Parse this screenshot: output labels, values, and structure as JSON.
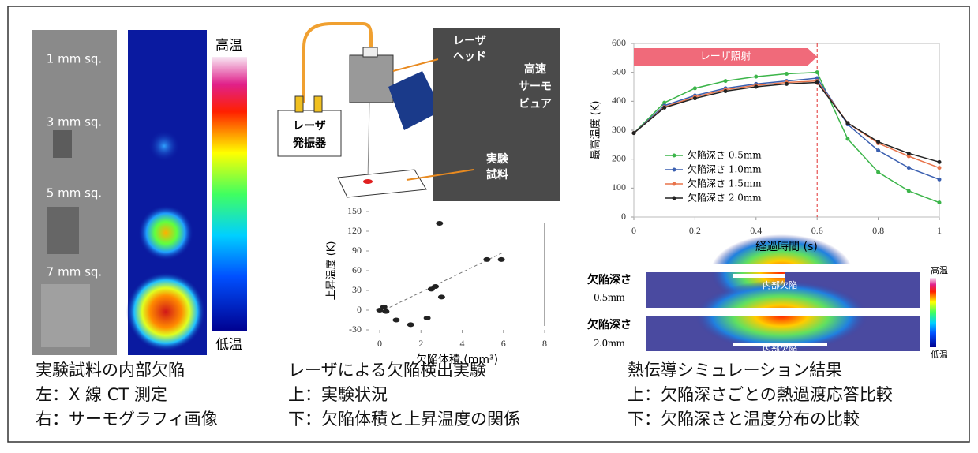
{
  "ct_panel": {
    "labels": [
      "1 mm sq.",
      "3 mm sq.",
      "5 mm sq.",
      "7 mm sq."
    ],
    "colorbar": {
      "high": "高温",
      "low": "低温"
    },
    "caption": [
      "実験試料の内部欠陥",
      "左：X 線 CT 測定",
      "右：サーモグラフィ画像"
    ]
  },
  "experiment_panel": {
    "laser_head": [
      "レーザ",
      "ヘッド"
    ],
    "thermo_viewer": [
      "高速",
      "サーモ",
      "ビュア"
    ],
    "oscillator": [
      "レーザ",
      "発振器"
    ],
    "sample": [
      "実験",
      "試料"
    ],
    "caption": [
      "レーザによる欠陥検出実験",
      "上：実験状況",
      "下：欠陥体積と上昇温度の関係"
    ]
  },
  "simulation_panel": {
    "rows": [
      [
        "欠陥深さ",
        "0.5mm"
      ],
      [
        "欠陥深さ",
        "2.0mm"
      ]
    ],
    "defect_label": [
      "内部欠陥",
      "内部欠陥"
    ],
    "colorbar": {
      "high": "高温",
      "low": "低温"
    },
    "caption": [
      "熱伝導シミュレーション結果",
      "上：欠陥深さごとの熱過渡応答比較",
      "下：欠陥深さと温度分布の比較"
    ]
  },
  "chart_data": [
    {
      "type": "scatter",
      "y_label": "上昇温度 (K)",
      "x_label": "欠陥体積 (mm³)",
      "x": [
        0,
        0.2,
        0.3,
        0.8,
        1.5,
        2.3,
        2.5,
        2.7,
        2.9,
        3.0,
        5.2,
        5.9
      ],
      "values": [
        0,
        5,
        -2,
        -15,
        -22,
        -12,
        32,
        36,
        132,
        20,
        77,
        77
      ],
      "color": "#222",
      "trendline": {
        "x": [
          0,
          6
        ],
        "values": [
          -3,
          88
        ]
      },
      "xlim": [
        -0.5,
        8
      ],
      "ylim": [
        -30,
        150
      ],
      "xticks": [
        0,
        2,
        4,
        6,
        8
      ],
      "yticks": [
        -30,
        0,
        30,
        60,
        90,
        120,
        150
      ]
    },
    {
      "type": "line",
      "y_label": "最高温度 (K)",
      "x_label": "経過時間 (s)",
      "annotation": "レーザ照射",
      "x": [
        0,
        0.1,
        0.2,
        0.3,
        0.4,
        0.5,
        0.6,
        0.7,
        0.8,
        0.9,
        1
      ],
      "series": [
        {
          "name": "欠陥深さ 0.5mm",
          "color": "#3cb54a",
          "values": [
            290,
            395,
            445,
            470,
            485,
            495,
            500,
            270,
            155,
            90,
            50
          ]
        },
        {
          "name": "欠陥深さ 1.0mm",
          "color": "#3a5fb0",
          "values": [
            290,
            385,
            420,
            445,
            460,
            470,
            480,
            320,
            230,
            170,
            130
          ]
        },
        {
          "name": "欠陥深さ 1.5mm",
          "color": "#e8734a",
          "values": [
            290,
            380,
            415,
            440,
            455,
            465,
            470,
            325,
            255,
            210,
            170
          ]
        },
        {
          "name": "欠陥深さ 2.0mm",
          "color": "#222222",
          "values": [
            290,
            378,
            410,
            435,
            450,
            460,
            465,
            325,
            260,
            220,
            190
          ]
        }
      ],
      "vline": 0.6,
      "xlim": [
        0,
        1
      ],
      "ylim": [
        0,
        600
      ],
      "xticks": [
        0,
        0.2,
        0.4,
        0.6,
        0.8,
        1
      ],
      "yticks": [
        0,
        100,
        200,
        300,
        400,
        500,
        600
      ],
      "legend": "lower left"
    }
  ]
}
